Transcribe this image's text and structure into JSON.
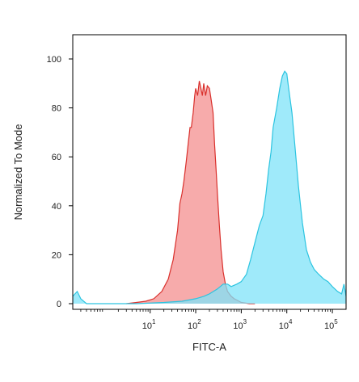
{
  "chart_data": {
    "type": "area",
    "title": "",
    "xlabel": "FITC-A",
    "ylabel": "Normalized To Mode",
    "x_scale": "log",
    "xlim": [
      0.2,
      200000
    ],
    "ylim": [
      0,
      100
    ],
    "grid": false,
    "legend": "none",
    "y_ticks": [
      {
        "value": 0,
        "label": "0"
      },
      {
        "value": 20,
        "label": "20"
      },
      {
        "value": 40,
        "label": "40"
      },
      {
        "value": 60,
        "label": "60"
      },
      {
        "value": 80,
        "label": "80"
      },
      {
        "value": 100,
        "label": "100"
      }
    ],
    "x_ticks": [
      {
        "value": 10,
        "base": "10",
        "exp": "1"
      },
      {
        "value": 100,
        "base": "10",
        "exp": "2"
      },
      {
        "value": 1000,
        "base": "10",
        "exp": "3"
      },
      {
        "value": 10000,
        "base": "10",
        "exp": "4"
      },
      {
        "value": 100000,
        "base": "10",
        "exp": "5"
      }
    ],
    "series": [
      {
        "stroke": "#d9302c",
        "fill": "#f48f8f",
        "fill_opacity": 0.75,
        "x": [
          3,
          5,
          8,
          12,
          18,
          25,
          32,
          40,
          45,
          50,
          55,
          62,
          70,
          75,
          80,
          88,
          95,
          100,
          110,
          120,
          130,
          140,
          150,
          165,
          180,
          200,
          220,
          240,
          260,
          280,
          300,
          330,
          360,
          400,
          450,
          500,
          600,
          700,
          800,
          1000,
          1200,
          1500,
          2000
        ],
        "y": [
          0,
          0.5,
          1,
          2,
          5,
          10,
          18,
          30,
          41,
          45,
          50,
          58,
          67,
          72,
          72,
          78,
          85,
          88,
          85,
          91,
          88,
          85,
          90,
          85,
          89,
          88,
          83,
          78,
          65,
          55,
          45,
          32,
          22,
          13,
          8,
          5,
          3,
          2,
          1.5,
          0.5,
          0.3,
          0,
          0
        ]
      },
      {
        "stroke": "#2cc4e0",
        "fill": "#7fe3f8",
        "fill_opacity": 0.75,
        "x": [
          0.2,
          0.25,
          0.3,
          0.4,
          1,
          5,
          20,
          50,
          100,
          150,
          200,
          300,
          400,
          500,
          600,
          800,
          1000,
          1300,
          1600,
          2000,
          2500,
          3000,
          3500,
          4000,
          4500,
          5000,
          6000,
          7000,
          8000,
          9000,
          10000,
          11000,
          13000,
          15000,
          18000,
          22000,
          27000,
          33000,
          40000,
          50000,
          65000,
          80000,
          100000,
          130000,
          160000,
          180000,
          200000
        ],
        "y": [
          3,
          5,
          2,
          0,
          0,
          0,
          0.5,
          1,
          2,
          3,
          4,
          6,
          8,
          8,
          7,
          8,
          9,
          12,
          18,
          25,
          32,
          36,
          45,
          55,
          62,
          72,
          80,
          88,
          93,
          95,
          94,
          88,
          78,
          65,
          48,
          33,
          22,
          17,
          14,
          12,
          10,
          9,
          7,
          5,
          4,
          8,
          3
        ]
      }
    ]
  }
}
